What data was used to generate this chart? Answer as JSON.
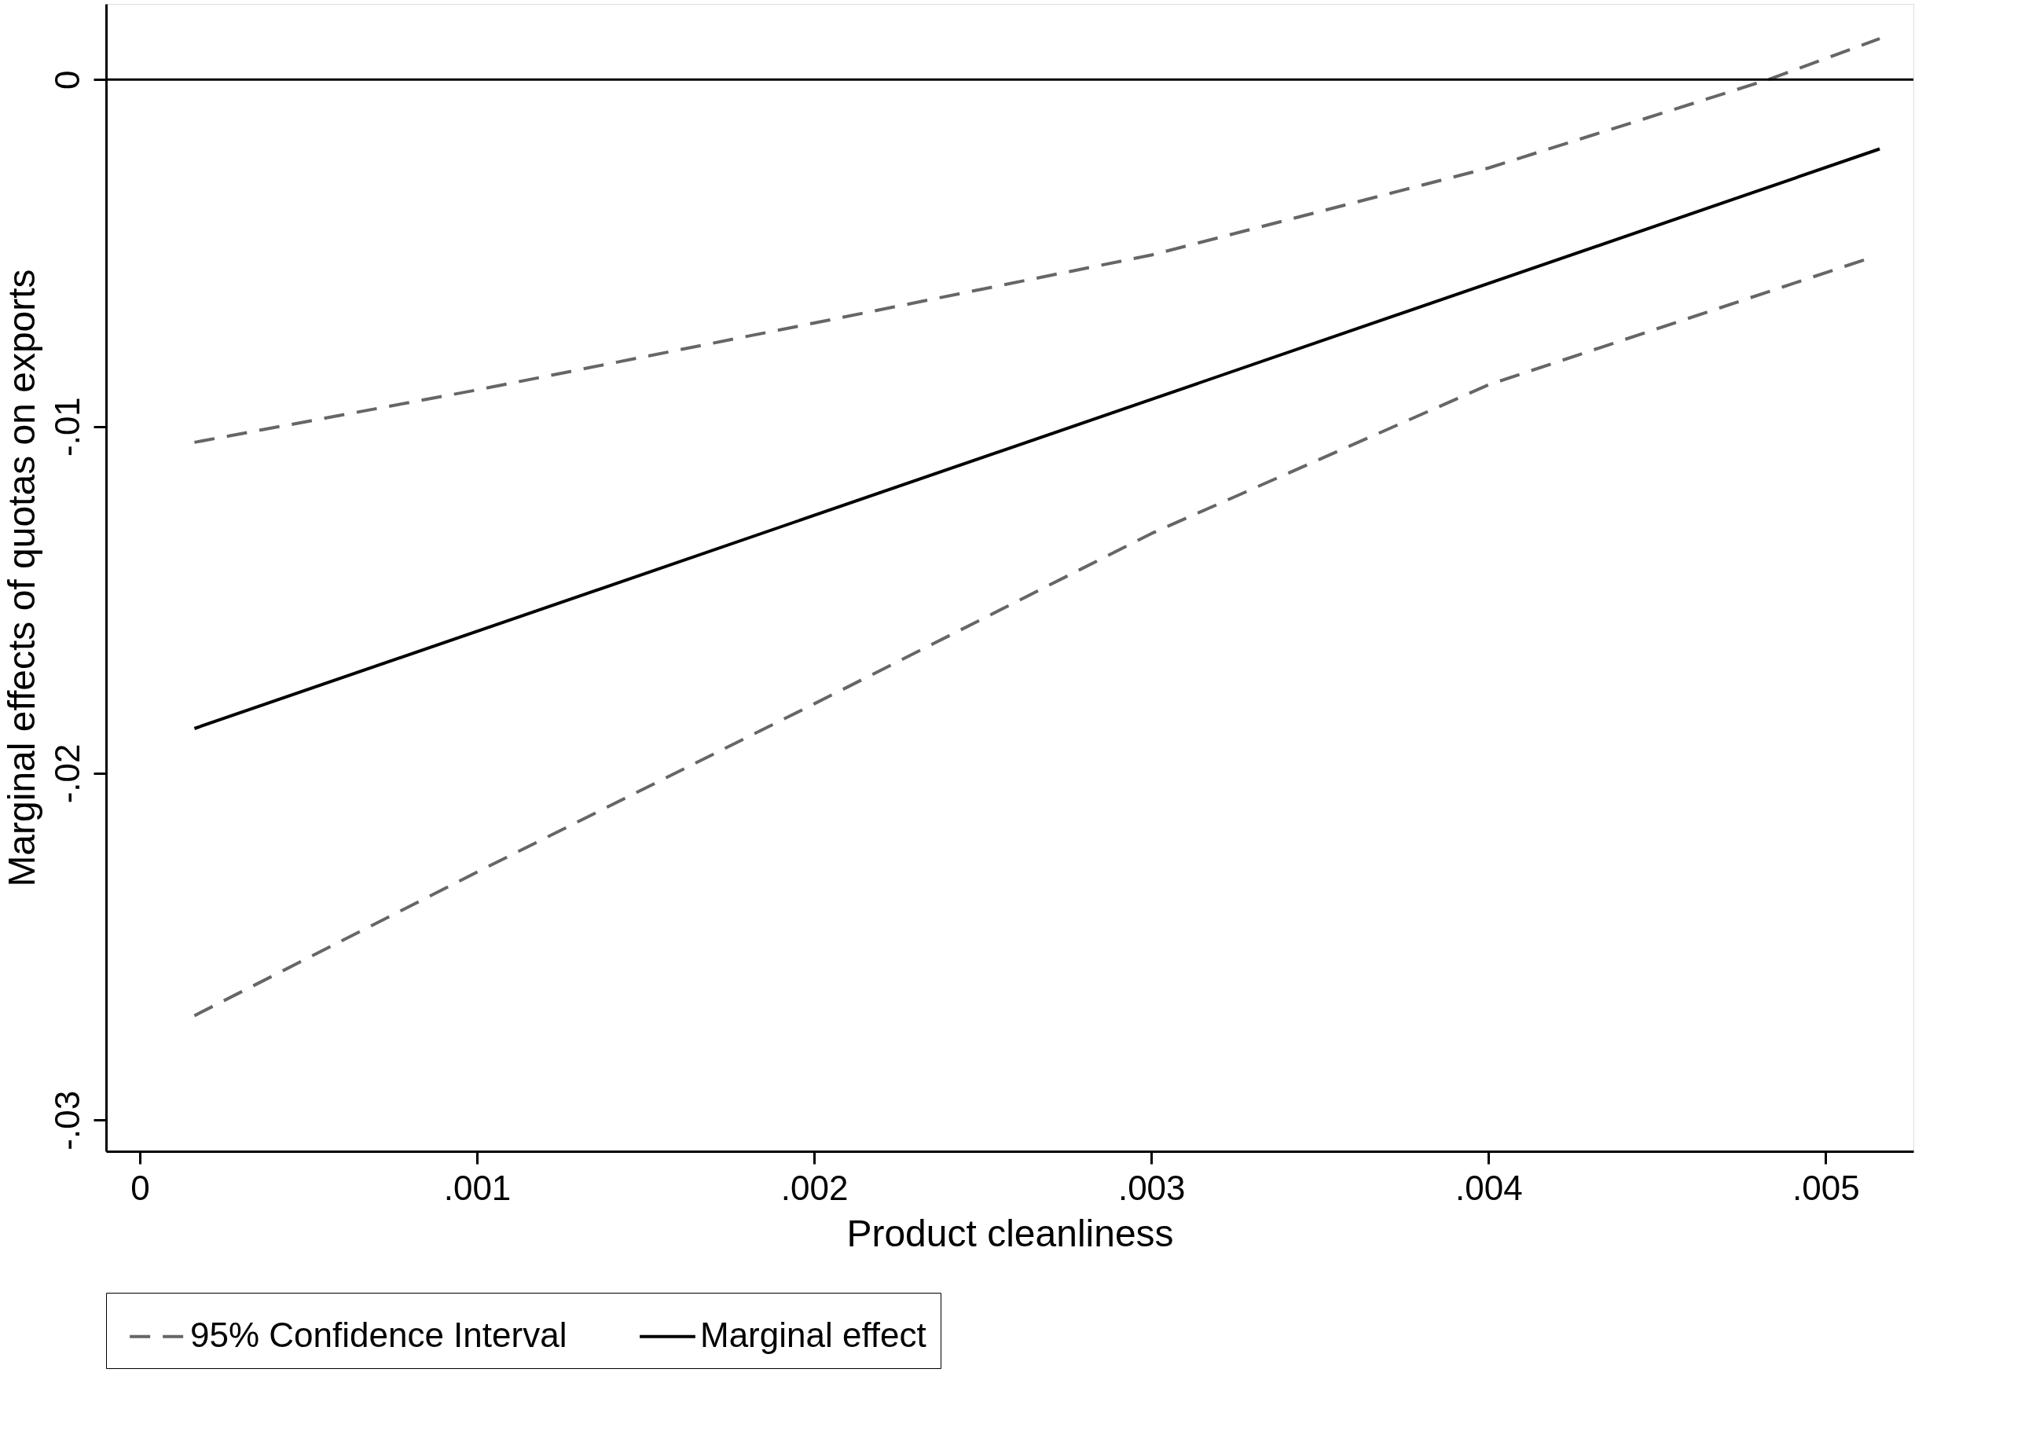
{
  "chart_data": {
    "type": "line",
    "xlabel": "Product cleanliness",
    "ylabel": "Marginal effects of quotas on exports",
    "series": [
      {
        "name": "95% Confidence Interval",
        "color": "#666666",
        "line_style": "dashed",
        "x": [
          0.000162,
          0.001,
          0.002,
          0.003,
          0.004,
          0.00483,
          0.00516
        ],
        "values": [
          -0.01046,
          -0.00895,
          -0.00702,
          -0.00506,
          -0.00255,
          0.0,
          0.00118
        ]
      },
      {
        "color": "#666666",
        "line_style": "dashed",
        "x": [
          0.000162,
          0.001,
          0.002,
          0.003,
          0.004,
          0.00512
        ],
        "values": [
          -0.02699,
          -0.02285,
          -0.018,
          -0.01309,
          -0.0088,
          -0.00518
        ]
      },
      {
        "name": "Marginal effect",
        "color": "#000000",
        "line_style": "solid",
        "x": [
          0.000162,
          0.00516
        ],
        "values": [
          -0.01871,
          -0.002
        ]
      }
    ],
    "xlim": [
      -0.0001,
      0.00526
    ],
    "xticks": [
      0,
      {
        "value": 0.001,
        "label": ".001"
      },
      {
        "value": 0.002,
        "label": ".002"
      },
      {
        "value": 0.003,
        "label": ".003"
      },
      {
        "value": 0.004,
        "label": ".004"
      },
      {
        "value": 0.005,
        "label": ".005"
      }
    ],
    "ylim": [
      -0.0309,
      0.00218
    ],
    "yticks": [
      {
        "value": -0.03,
        "label": "-.03"
      },
      {
        "value": -0.02,
        "label": "-.02"
      },
      {
        "value": -0.01,
        "label": "-.01"
      },
      0
    ],
    "ref_lines": [
      {
        "axis": "y",
        "value": 0,
        "color": "#000000",
        "line_style": "solid"
      }
    ],
    "grid": false,
    "legend": "bottom"
  }
}
